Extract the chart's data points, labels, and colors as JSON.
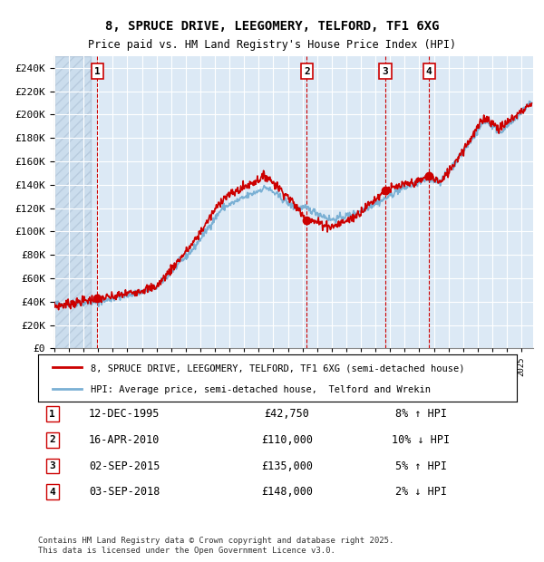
{
  "title_line1": "8, SPRUCE DRIVE, LEEGOMERY, TELFORD, TF1 6XG",
  "title_line2": "Price paid vs. HM Land Registry's House Price Index (HPI)",
  "ylim": [
    0,
    250000
  ],
  "yticks": [
    0,
    20000,
    40000,
    60000,
    80000,
    100000,
    120000,
    140000,
    160000,
    180000,
    200000,
    220000,
    240000
  ],
  "xlim_start": 1993.0,
  "xlim_end": 2025.8,
  "sale_dates_decimal": [
    1995.95,
    2010.29,
    2015.67,
    2018.67
  ],
  "sale_prices": [
    42750,
    110000,
    135000,
    148000
  ],
  "sale_labels": [
    "1",
    "2",
    "3",
    "4"
  ],
  "legend_line1": "8, SPRUCE DRIVE, LEEGOMERY, TELFORD, TF1 6XG (semi-detached house)",
  "legend_line2": "HPI: Average price, semi-detached house,  Telford and Wrekin",
  "table_entries": [
    {
      "num": "1",
      "date": "12-DEC-1995",
      "price": "£42,750",
      "hpi": "8% ↑ HPI"
    },
    {
      "num": "2",
      "date": "16-APR-2010",
      "price": "£110,000",
      "hpi": "10% ↓ HPI"
    },
    {
      "num": "3",
      "date": "02-SEP-2015",
      "price": "£135,000",
      "hpi": "5% ↑ HPI"
    },
    {
      "num": "4",
      "date": "03-SEP-2018",
      "price": "£148,000",
      "hpi": "2% ↓ HPI"
    }
  ],
  "footer": "Contains HM Land Registry data © Crown copyright and database right 2025.\nThis data is licensed under the Open Government Licence v3.0.",
  "hpi_color": "#7ab0d4",
  "price_color": "#cc0000",
  "plot_bg": "#dce9f5",
  "dashed_line_color": "#cc0000"
}
